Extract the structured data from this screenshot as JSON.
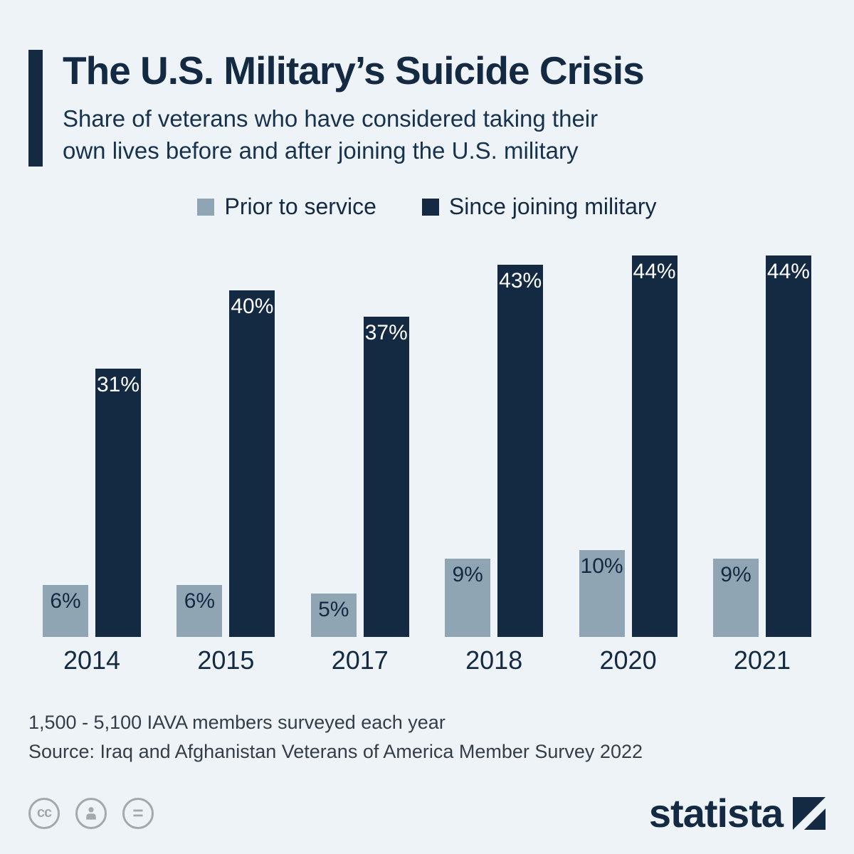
{
  "page": {
    "background_color": "#eef3f8",
    "accent_color": "#132a42"
  },
  "header": {
    "title": "The U.S. Military’s Suicide Crisis",
    "subtitle_line1": "Share of veterans who have considered taking their",
    "subtitle_line2": "own lives before and after joining the U.S. military"
  },
  "chart_data": {
    "type": "bar",
    "categories": [
      "2014",
      "2015",
      "2017",
      "2018",
      "2020",
      "2021"
    ],
    "series": [
      {
        "name": "Prior to service",
        "color": "#90a5b4",
        "label_color": "#132a42",
        "values": [
          6,
          6,
          5,
          9,
          10,
          9
        ],
        "labels": [
          "6%",
          "6%",
          "5%",
          "9%",
          "10%",
          "9%"
        ]
      },
      {
        "name": "Since joining military",
        "color": "#132a42",
        "label_color": "#ffffff",
        "values": [
          31,
          40,
          37,
          43,
          44,
          44
        ],
        "labels": [
          "31%",
          "40%",
          "37%",
          "43%",
          "44%",
          "44%"
        ]
      }
    ],
    "ylim": [
      0,
      46
    ],
    "value_suffix": "%",
    "grid": false,
    "legend_position": "top",
    "title": "The U.S. Military’s Suicide Crisis",
    "xlabel": "",
    "ylabel": ""
  },
  "footer": {
    "note": "1,500 - 5,100 IAVA members surveyed each year",
    "source": "Source: Iraq and Afghanistan Veterans of America Member Survey 2022",
    "brand": "statista"
  },
  "icons": {
    "cc": "cc",
    "attribution": "person",
    "nd": "="
  }
}
